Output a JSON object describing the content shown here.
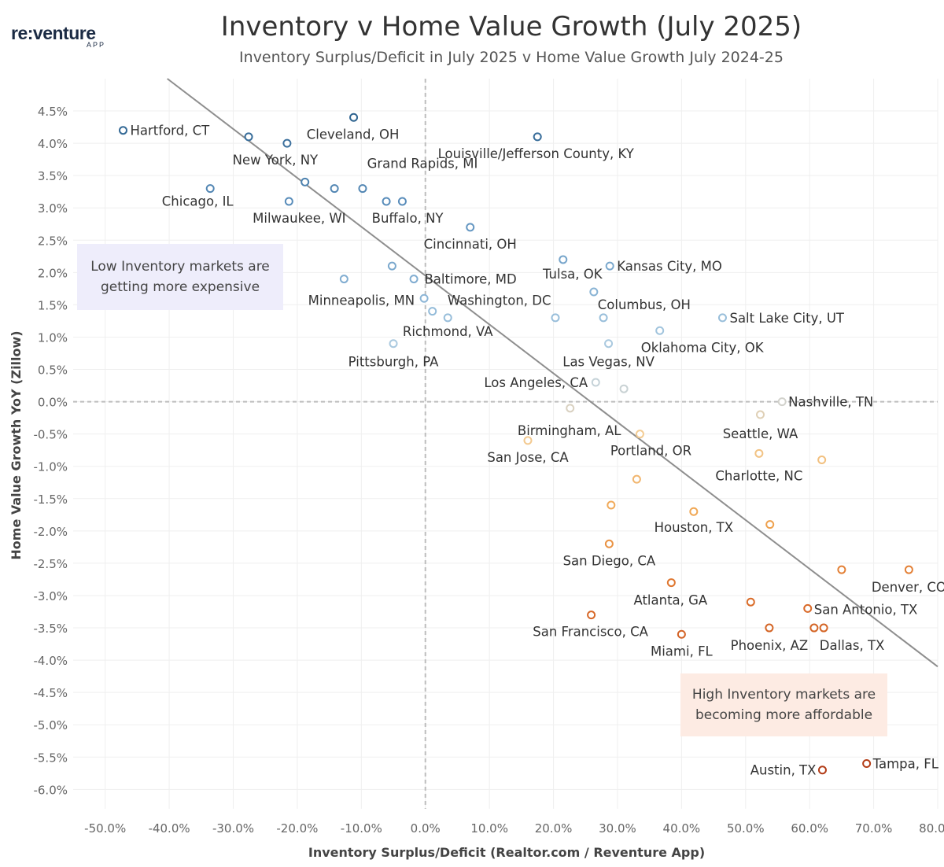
{
  "brand": {
    "logo_main": "re:venture",
    "logo_sub": "APP"
  },
  "chart_data": {
    "type": "scatter",
    "title": "Inventory v Home Value Growth (July 2025)",
    "subtitle": "Inventory Surplus/Deficit in July 2025 v Home Value Growth July 2024-25",
    "xlabel": "Inventory Surplus/Deficit (Realtor.com / Reventure App)",
    "ylabel": "Home Value Growth YoY (Zillow)",
    "xlim": [
      -55,
      80
    ],
    "ylim": [
      -6.3,
      5.0
    ],
    "x_ticks": [
      -50,
      -40,
      -30,
      -20,
      -10,
      0,
      10,
      20,
      30,
      40,
      50,
      60,
      70,
      80
    ],
    "x_tick_labels": [
      "-50.0%",
      "-40.0%",
      "-30.0%",
      "-20.0%",
      "-10.0%",
      "0.0%",
      "10.0%",
      "20.0%",
      "30.0%",
      "40.0%",
      "50.0%",
      "60.0%",
      "70.0%",
      "80.0%"
    ],
    "y_ticks": [
      4.5,
      4.0,
      3.5,
      3.0,
      2.5,
      2.0,
      1.5,
      1.0,
      0.5,
      0,
      -0.5,
      -1.0,
      -1.5,
      -2.0,
      -2.5,
      -3.0,
      -3.5,
      -4.0,
      -4.5,
      -5.0,
      -5.5,
      -6.0
    ],
    "y_tick_labels": [
      "4.5%",
      "4.0%",
      "3.5%",
      "3.0%",
      "2.5%",
      "2.0%",
      "1.5%",
      "1.0%",
      "0.5%",
      "0.0%",
      "-0.5%",
      "-1.0%",
      "-1.5%",
      "-2.0%",
      "-2.5%",
      "-3.0%",
      "-3.5%",
      "-4.0%",
      "-4.5%",
      "-5.0%",
      "-5.5%",
      "-6.0%"
    ],
    "grid": true,
    "reference_lines": {
      "x": 0,
      "y": 0
    },
    "trend_line": {
      "points": [
        [
          -40.3,
          5.0
        ],
        [
          80,
          -4.1
        ]
      ]
    },
    "annotations": [
      "Low Inventory markets are getting more expensive",
      "High Inventory markets are becoming more affordable"
    ],
    "color_scale": {
      "high": "#2f6490",
      "mid": "#d2d2cc",
      "low": "#b23c17"
    },
    "points": [
      {
        "x": -47.2,
        "y": 4.2,
        "label": "Hartford, CT"
      },
      {
        "x": -27.6,
        "y": 4.1,
        "label": ""
      },
      {
        "x": -21.6,
        "y": 4.0,
        "label": "New York, NY"
      },
      {
        "x": -11.2,
        "y": 4.4,
        "label": "Cleveland, OH"
      },
      {
        "x": 17.5,
        "y": 4.1,
        "label": "Louisville/Jefferson County, KY"
      },
      {
        "x": -33.6,
        "y": 3.3,
        "label": "Chicago, IL"
      },
      {
        "x": -18.8,
        "y": 3.4,
        "label": ""
      },
      {
        "x": -14.2,
        "y": 3.3,
        "label": ""
      },
      {
        "x": -9.8,
        "y": 3.3,
        "label": "Grand Rapids, MI"
      },
      {
        "x": -21.3,
        "y": 3.1,
        "label": "Milwaukee, WI"
      },
      {
        "x": -6.1,
        "y": 3.1,
        "label": "Buffalo, NY"
      },
      {
        "x": -3.6,
        "y": 3.1,
        "label": ""
      },
      {
        "x": 7.0,
        "y": 2.7,
        "label": "Cincinnati, OH"
      },
      {
        "x": -12.7,
        "y": 1.9,
        "label": "Minneapolis, MN"
      },
      {
        "x": -5.2,
        "y": 2.1,
        "label": ""
      },
      {
        "x": -1.8,
        "y": 1.9,
        "label": "Baltimore, MD"
      },
      {
        "x": -0.2,
        "y": 1.6,
        "label": ""
      },
      {
        "x": 1.1,
        "y": 1.4,
        "label": "Washington, DC"
      },
      {
        "x": 3.5,
        "y": 1.3,
        "label": "Richmond, VA"
      },
      {
        "x": -5.0,
        "y": 0.9,
        "label": "Pittsburgh, PA"
      },
      {
        "x": 21.5,
        "y": 2.2,
        "label": "Tulsa, OK"
      },
      {
        "x": 28.8,
        "y": 2.1,
        "label": "Kansas City, MO"
      },
      {
        "x": 26.3,
        "y": 1.7,
        "label": "Columbus, OH"
      },
      {
        "x": 20.3,
        "y": 1.3,
        "label": ""
      },
      {
        "x": 27.8,
        "y": 1.3,
        "label": ""
      },
      {
        "x": 28.6,
        "y": 0.9,
        "label": "Las Vegas, NV"
      },
      {
        "x": 36.6,
        "y": 1.1,
        "label": "Oklahoma City, OK"
      },
      {
        "x": 46.4,
        "y": 1.3,
        "label": "Salt Lake City, UT"
      },
      {
        "x": 26.6,
        "y": 0.3,
        "label": "Los Angeles, CA"
      },
      {
        "x": 31.0,
        "y": 0.2,
        "label": ""
      },
      {
        "x": 55.7,
        "y": 0.0,
        "label": "Nashville, TN"
      },
      {
        "x": 22.6,
        "y": -0.1,
        "label": "Birmingham, AL"
      },
      {
        "x": 52.3,
        "y": -0.2,
        "label": "Seattle, WA"
      },
      {
        "x": 16.0,
        "y": -0.6,
        "label": "San Jose, CA"
      },
      {
        "x": 33.5,
        "y": -0.5,
        "label": "Portland, OR"
      },
      {
        "x": 52.1,
        "y": -0.8,
        "label": "Charlotte, NC"
      },
      {
        "x": 61.9,
        "y": -0.9,
        "label": ""
      },
      {
        "x": 33.0,
        "y": -1.2,
        "label": ""
      },
      {
        "x": 29.0,
        "y": -1.6,
        "label": ""
      },
      {
        "x": 41.9,
        "y": -1.7,
        "label": "Houston, TX"
      },
      {
        "x": 53.8,
        "y": -1.9,
        "label": ""
      },
      {
        "x": 28.7,
        "y": -2.2,
        "label": "San Diego, CA"
      },
      {
        "x": 65.0,
        "y": -2.6,
        "label": ""
      },
      {
        "x": 75.5,
        "y": -2.6,
        "label": "Denver, CO"
      },
      {
        "x": 38.4,
        "y": -2.8,
        "label": "Atlanta, GA"
      },
      {
        "x": 50.8,
        "y": -3.1,
        "label": ""
      },
      {
        "x": 59.7,
        "y": -3.2,
        "label": "San Antonio, TX"
      },
      {
        "x": 25.9,
        "y": -3.3,
        "label": "San Francisco, CA"
      },
      {
        "x": 40.0,
        "y": -3.6,
        "label": "Miami, FL"
      },
      {
        "x": 53.7,
        "y": -3.5,
        "label": "Phoenix, AZ"
      },
      {
        "x": 60.7,
        "y": -3.5,
        "label": ""
      },
      {
        "x": 62.2,
        "y": -3.5,
        "label": "Dallas, TX"
      },
      {
        "x": 62.0,
        "y": -5.7,
        "label": "Austin, TX"
      },
      {
        "x": 68.9,
        "y": -5.6,
        "label": "Tampa, FL"
      }
    ]
  }
}
